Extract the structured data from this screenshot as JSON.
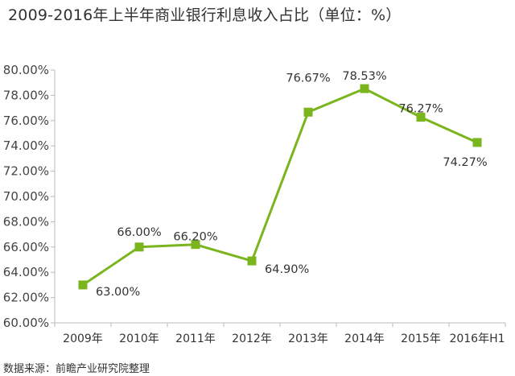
{
  "title": "2009-2016年上半年商业银行利息收入占比（单位：%）",
  "source": "数据来源：前瞻产业研究院整理",
  "colors": {
    "line": "#7ab51d",
    "axis": "#bbbbbb"
  },
  "chart_data": {
    "type": "line",
    "title": "2009-2016年上半年商业银行利息收入占比（单位：%）",
    "categories": [
      "2009年",
      "2010年",
      "2011年",
      "2012年",
      "2013年",
      "2014年",
      "2015年",
      "2016年H1"
    ],
    "series": [
      {
        "values": [
          63.0,
          66.0,
          66.2,
          64.9,
          76.67,
          78.53,
          76.27,
          74.27
        ]
      }
    ],
    "data_labels": [
      "63.00%",
      "66.00%",
      "66.20%",
      "64.90%",
      "76.67%",
      "78.53%",
      "76.27%",
      "74.27%"
    ],
    "ylim": [
      60,
      80
    ],
    "yticks": [
      60,
      62,
      64,
      66,
      68,
      70,
      72,
      74,
      76,
      78,
      80
    ],
    "ytick_labels": [
      "60.00%",
      "62.00%",
      "64.00%",
      "66.00%",
      "68.00%",
      "70.00%",
      "72.00%",
      "74.00%",
      "76.00%",
      "78.00%",
      "80.00%"
    ],
    "grid": false,
    "legend": "none"
  }
}
